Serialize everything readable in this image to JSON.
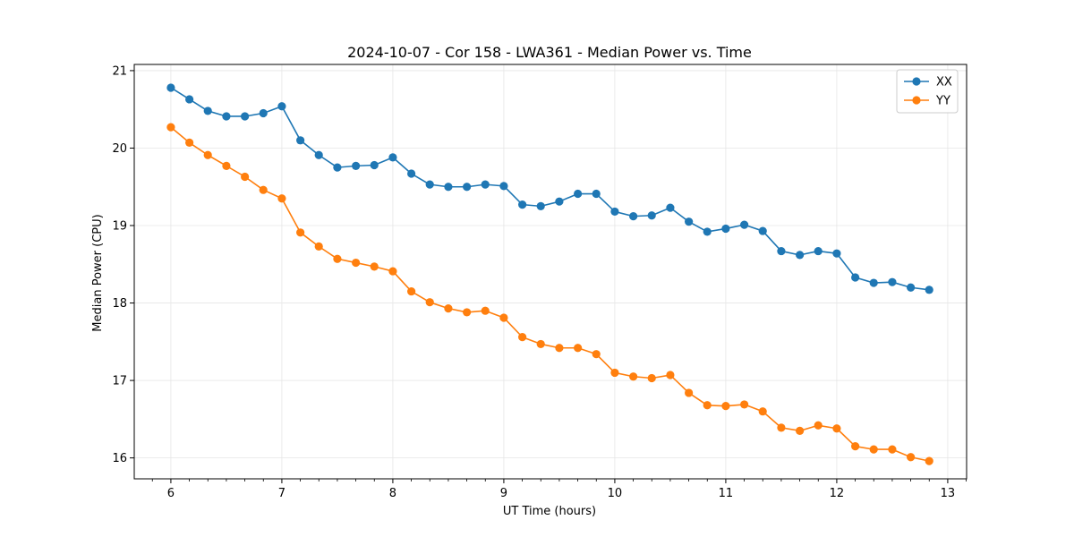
{
  "chart_data": {
    "type": "line",
    "title": "2024-10-07 - Cor 158 - LWA361 - Median Power vs. Time",
    "xlabel": "UT Time (hours)",
    "ylabel": "Median Power (CPU)",
    "xlim": [
      5.67,
      13.17
    ],
    "ylim": [
      15.73,
      21.08
    ],
    "xticks": [
      6,
      7,
      8,
      9,
      10,
      11,
      12,
      13
    ],
    "yticks": [
      16,
      17,
      18,
      19,
      20,
      21
    ],
    "grid": true,
    "legend_position": "top-right",
    "x": [
      6.0,
      6.167,
      6.333,
      6.5,
      6.667,
      6.833,
      7.0,
      7.167,
      7.333,
      7.5,
      7.667,
      7.833,
      8.0,
      8.167,
      8.333,
      8.5,
      8.667,
      8.833,
      9.0,
      9.167,
      9.333,
      9.5,
      9.667,
      9.833,
      10.0,
      10.167,
      10.333,
      10.5,
      10.667,
      10.833,
      11.0,
      11.167,
      11.333,
      11.5,
      11.667,
      11.833,
      12.0,
      12.167,
      12.333,
      12.5,
      12.667,
      12.833
    ],
    "series": [
      {
        "name": "XX",
        "color": "#1f77b4",
        "values": [
          20.78,
          20.63,
          20.48,
          20.41,
          20.41,
          20.45,
          20.54,
          20.1,
          19.91,
          19.75,
          19.77,
          19.78,
          19.88,
          19.67,
          19.53,
          19.5,
          19.5,
          19.53,
          19.51,
          19.27,
          19.25,
          19.31,
          19.41,
          19.41,
          19.18,
          19.12,
          19.13,
          19.23,
          19.05,
          18.92,
          18.96,
          19.01,
          18.93,
          18.67,
          18.62,
          18.67,
          18.64,
          18.33,
          18.26,
          18.27,
          18.2,
          18.17
        ]
      },
      {
        "name": "YY",
        "color": "#ff7f0e",
        "values": [
          20.27,
          20.07,
          19.91,
          19.77,
          19.63,
          19.46,
          19.35,
          18.91,
          18.73,
          18.57,
          18.52,
          18.47,
          18.41,
          18.15,
          18.01,
          17.93,
          17.88,
          17.9,
          17.81,
          17.56,
          17.47,
          17.42,
          17.42,
          17.34,
          17.1,
          17.05,
          17.03,
          17.07,
          16.84,
          16.68,
          16.67,
          16.69,
          16.6,
          16.39,
          16.35,
          16.42,
          16.38,
          16.15,
          16.11,
          16.11,
          16.01,
          15.96
        ]
      }
    ]
  }
}
